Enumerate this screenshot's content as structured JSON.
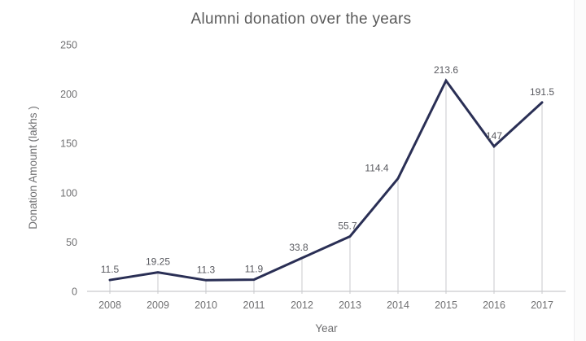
{
  "chart_data": {
    "type": "line",
    "title": "Alumni donation over the years",
    "xlabel": "Year",
    "ylabel": "Donation Amount (lakhs )",
    "categories": [
      "2008",
      "2009",
      "2010",
      "2011",
      "2012",
      "2013",
      "2014",
      "2015",
      "2016",
      "2017"
    ],
    "values": [
      11.5,
      19.25,
      11.3,
      11.9,
      33.8,
      55.7,
      114.4,
      213.6,
      147,
      191.5
    ],
    "data_labels": [
      "11.5",
      "19.25",
      "11.3",
      "11.9",
      "33.8",
      "55.7",
      "114.4",
      "213.6",
      "147",
      "191.5"
    ],
    "label_offsets_x": [
      0,
      0,
      0,
      0,
      -4,
      -3,
      -26,
      0,
      0,
      0
    ],
    "ylim": [
      0,
      250
    ],
    "yticks": [
      0,
      50,
      100,
      150,
      200,
      250
    ],
    "grid": "vertical-drop-lines",
    "legend": "none",
    "colors": {
      "line": "#2a2f55",
      "drop_line": "#c9cacd",
      "axis_line": "#c9cacd",
      "title_text": "#595959",
      "tick_text": "#707072",
      "data_label_text": "#58595f"
    }
  }
}
